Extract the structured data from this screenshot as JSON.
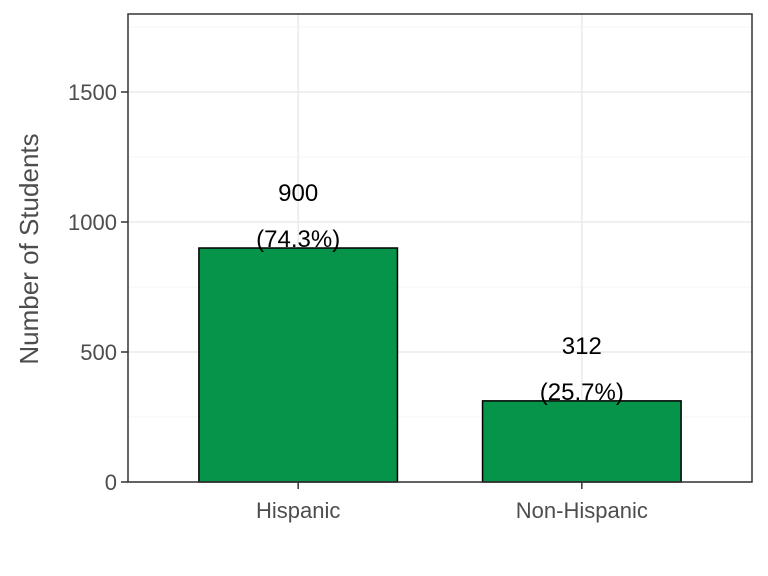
{
  "chart_data": {
    "type": "bar",
    "title": "",
    "xlabel": "",
    "ylabel": "Number of Students",
    "categories": [
      "Hispanic",
      "Non-Hispanic"
    ],
    "values": [
      900,
      312
    ],
    "labels": [
      {
        "count": "900",
        "percent": "(74.3%)"
      },
      {
        "count": "312",
        "percent": "(25.7%)"
      }
    ],
    "ylim": [
      0,
      1800
    ],
    "yticks": [
      0,
      500,
      1000,
      1500
    ],
    "grid": true,
    "legend": "none",
    "colors": {
      "bar_fill": "#05944a",
      "bar_stroke": "#000000",
      "grid_major": "#ebebeb",
      "grid_minor": "#f4f4f4",
      "panel_border": "#333333"
    }
  }
}
